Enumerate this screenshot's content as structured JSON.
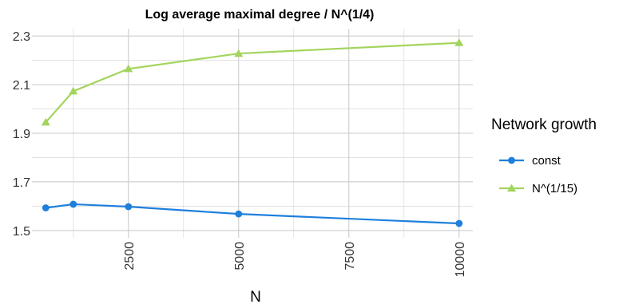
{
  "chart_data": {
    "type": "line",
    "title": "Log average maximal degree / N^(1/4)",
    "xlabel": "N",
    "ylabel": "",
    "x": [
      625,
      1250,
      2500,
      5000,
      10000
    ],
    "xlim": [
      312,
      10312
    ],
    "ylim": [
      1.47,
      2.33
    ],
    "xticks": [
      2500,
      5000,
      7500,
      10000
    ],
    "xtick_labels": [
      "2500",
      "5000",
      "7500",
      "10000"
    ],
    "yticks": [
      1.5,
      1.7,
      1.9,
      2.1,
      2.3
    ],
    "ytick_labels": [
      "1.5",
      "1.7",
      "1.9",
      "2.1",
      "2.3"
    ],
    "grid": true,
    "legend": {
      "title": "Network growth",
      "position": "right"
    },
    "series": [
      {
        "name": "const",
        "values": [
          1.593,
          1.608,
          1.598,
          1.568,
          1.529
        ],
        "color": "#1e7fdc",
        "marker": "circle"
      },
      {
        "name": "N^(1/15)",
        "values": [
          1.945,
          2.073,
          2.165,
          2.228,
          2.272
        ],
        "color": "#a3d45c",
        "marker": "triangle"
      }
    ]
  }
}
